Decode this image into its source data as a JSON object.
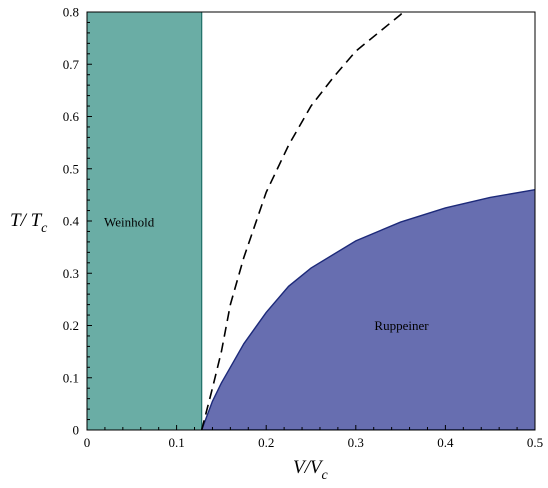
{
  "chart_data": {
    "type": "area",
    "xlabel": {
      "main": "V/V",
      "sub": "c"
    },
    "ylabel": {
      "main": "T/ T",
      "sub": "c"
    },
    "xlim": [
      0,
      0.5
    ],
    "ylim": [
      0,
      0.8
    ],
    "x_ticks": [
      "0",
      "0.1",
      "0.2",
      "0.3",
      "0.4",
      "0.5"
    ],
    "y_ticks": [
      "0",
      "0.1",
      "0.2",
      "0.3",
      "0.4",
      "0.5",
      "0.6",
      "0.7",
      "0.8"
    ],
    "grid": false,
    "regions": [
      {
        "label": "Weinhold",
        "color": "#6aada5",
        "edge_color": "#1e6e66",
        "x_range": [
          0,
          0.128
        ]
      },
      {
        "label": "Ruppeiner",
        "color": "#676eb0",
        "edge_color": "#1d2a7a",
        "boundary": {
          "x": [
            0.128,
            0.14,
            0.15,
            0.16,
            0.175,
            0.2,
            0.225,
            0.25,
            0.3,
            0.35,
            0.4,
            0.45,
            0.5
          ],
          "y": [
            0.0,
            0.055,
            0.09,
            0.12,
            0.165,
            0.225,
            0.275,
            0.31,
            0.362,
            0.398,
            0.425,
            0.445,
            0.46
          ]
        }
      }
    ],
    "series": [
      {
        "style": "dashed",
        "color": "#000000",
        "x": [
          0.128,
          0.14,
          0.15,
          0.16,
          0.175,
          0.2,
          0.225,
          0.25,
          0.275,
          0.3,
          0.325,
          0.35,
          0.36
        ],
        "y": [
          0.0,
          0.08,
          0.15,
          0.24,
          0.33,
          0.455,
          0.545,
          0.62,
          0.675,
          0.725,
          0.76,
          0.795,
          0.812
        ]
      }
    ]
  }
}
